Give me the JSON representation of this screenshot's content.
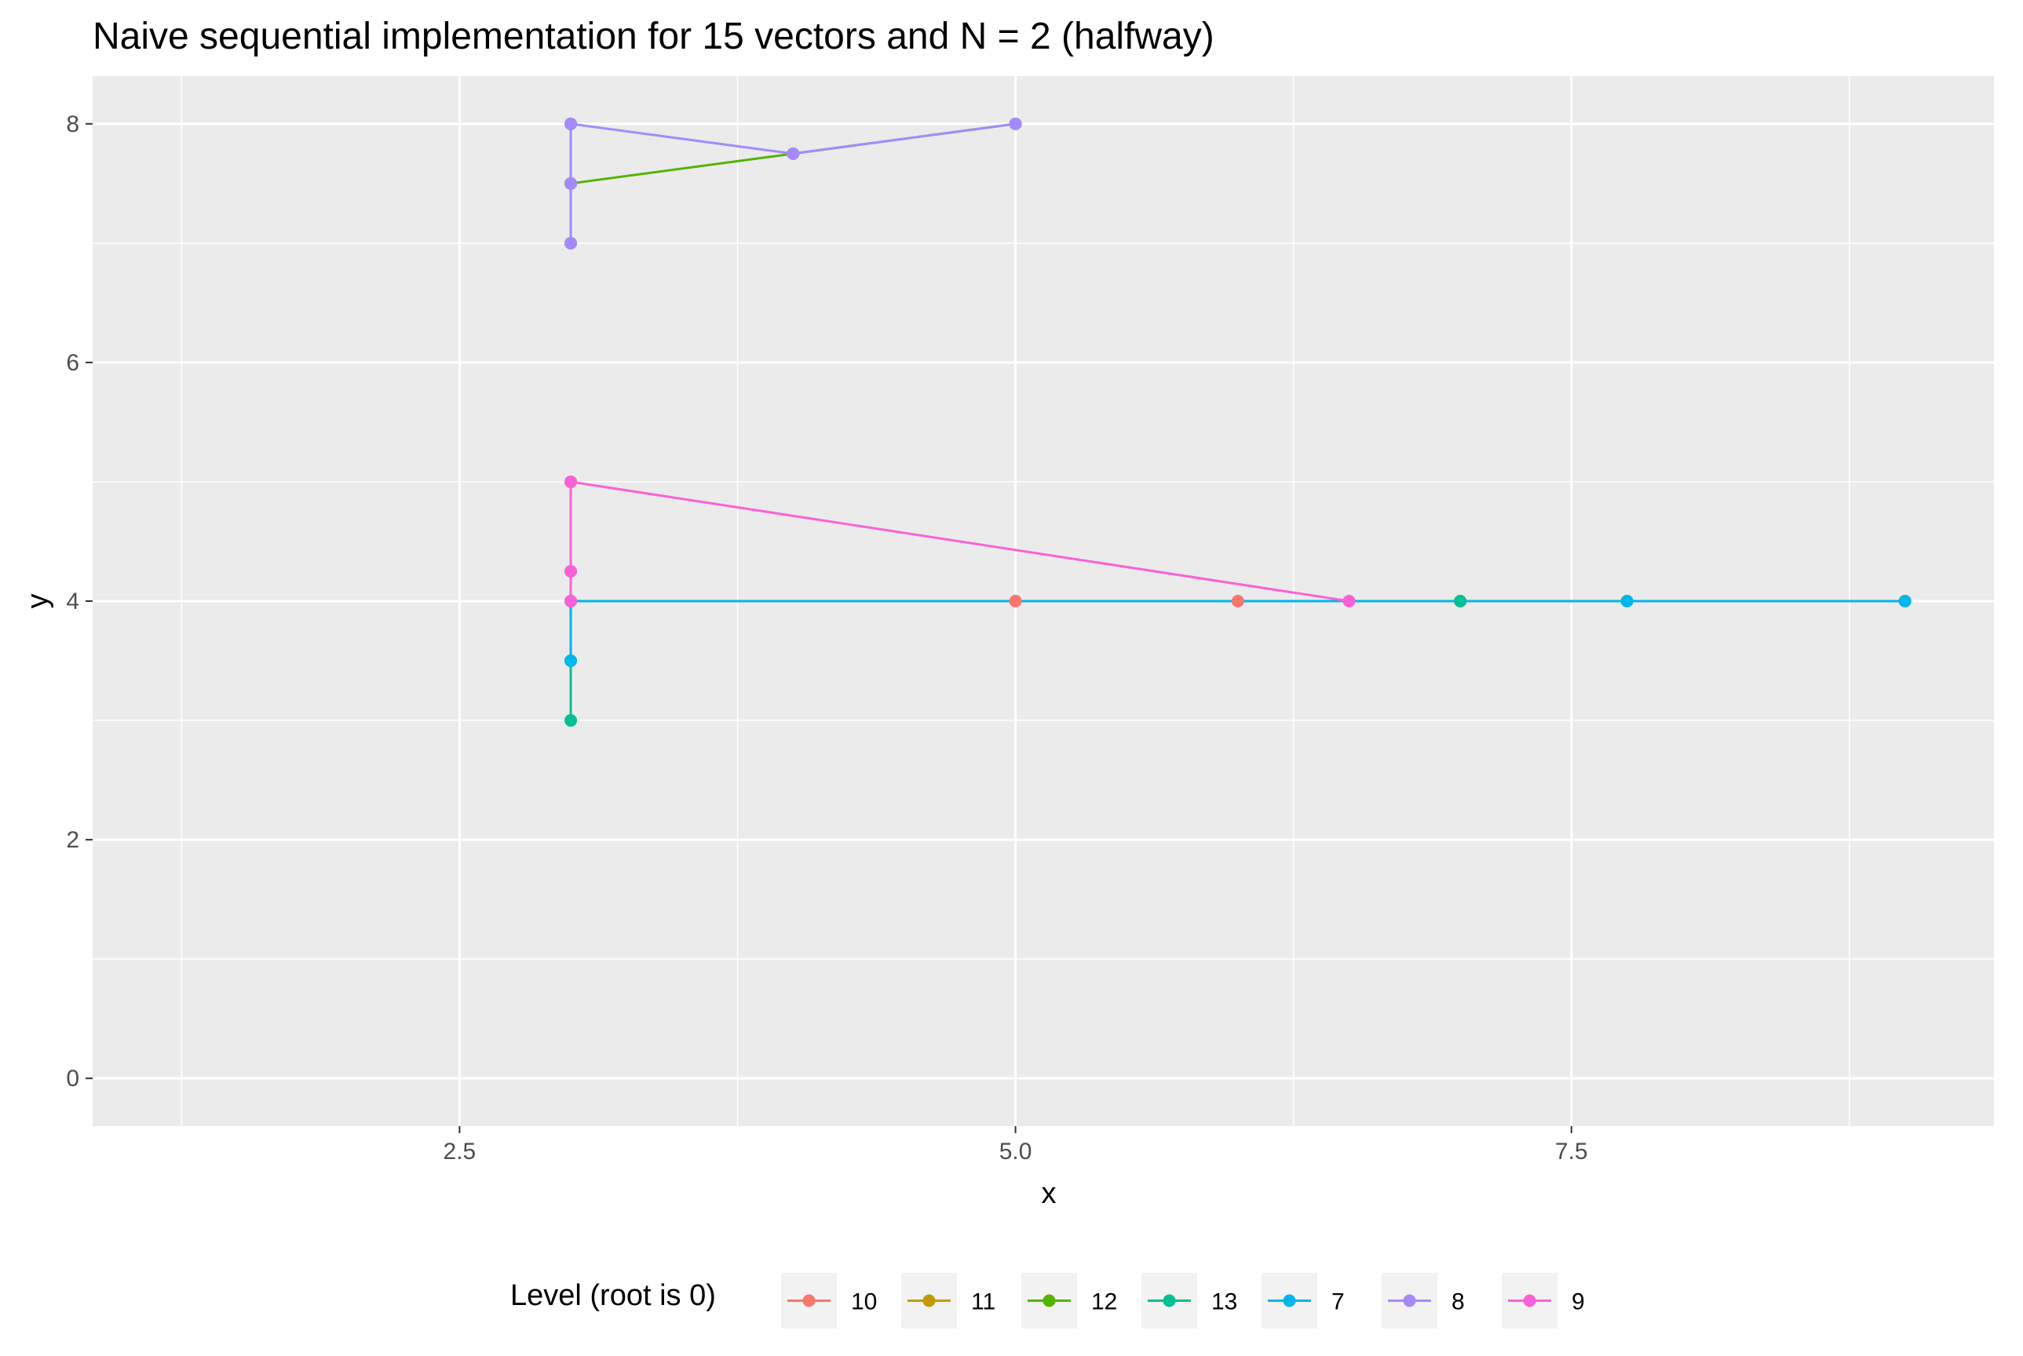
{
  "chart_data": {
    "type": "line",
    "title": "Naive sequential implementation for 15 vectors and N = 2 (halfway)",
    "xlabel": "x",
    "ylabel": "y",
    "xlim": [
      0.85,
      9.4
    ],
    "ylim": [
      -0.4,
      8.4
    ],
    "x_ticks": [
      2.5,
      5.0,
      7.5
    ],
    "x_tick_labels": [
      "2.5",
      "5.0",
      "7.5"
    ],
    "x_minor_ticks": [
      1.25,
      3.75,
      6.25,
      8.75
    ],
    "y_ticks": [
      0,
      2,
      4,
      6,
      8
    ],
    "y_tick_labels": [
      "0",
      "2",
      "4",
      "6",
      "8"
    ],
    "y_minor_ticks": [
      1,
      3,
      5,
      7
    ],
    "grid": true,
    "legend_title": "Level (root is 0)",
    "legend_position": "bottom",
    "series": [
      {
        "name": "10",
        "color": "#F8766D",
        "points": [
          [
            5,
            4
          ],
          [
            6,
            4
          ],
          [
            7,
            4
          ]
        ]
      },
      {
        "name": "11",
        "color": "#C49A00",
        "points": [
          [
            3,
            4.25
          ],
          [
            3,
            5
          ]
        ]
      },
      {
        "name": "12",
        "color": "#53B400",
        "points": [
          [
            3,
            7
          ],
          [
            3,
            7.5
          ],
          [
            3,
            8
          ],
          [
            3,
            7.5
          ],
          [
            4,
            7.75
          ],
          [
            5,
            8
          ]
        ]
      },
      {
        "name": "13",
        "color": "#00C094",
        "points": [
          [
            3,
            3
          ],
          [
            3,
            3.5
          ],
          [
            3,
            4
          ],
          [
            7,
            4
          ],
          [
            7.75,
            4
          ],
          [
            9,
            4
          ]
        ]
      },
      {
        "name": "7",
        "color": "#00B6EB",
        "points": [
          [
            3,
            3.5
          ],
          [
            3,
            4
          ],
          [
            7.75,
            4
          ],
          [
            9,
            4
          ]
        ]
      },
      {
        "name": "8",
        "color": "#A58AFF",
        "points": [
          [
            3,
            7
          ],
          [
            3,
            7.5
          ],
          [
            3,
            8
          ],
          [
            4,
            7.75
          ],
          [
            5,
            8
          ]
        ]
      },
      {
        "name": "9",
        "color": "#FB61D7",
        "points": [
          [
            3,
            4
          ],
          [
            3,
            4.25
          ],
          [
            3,
            5
          ],
          [
            6.5,
            4
          ]
        ]
      }
    ]
  }
}
